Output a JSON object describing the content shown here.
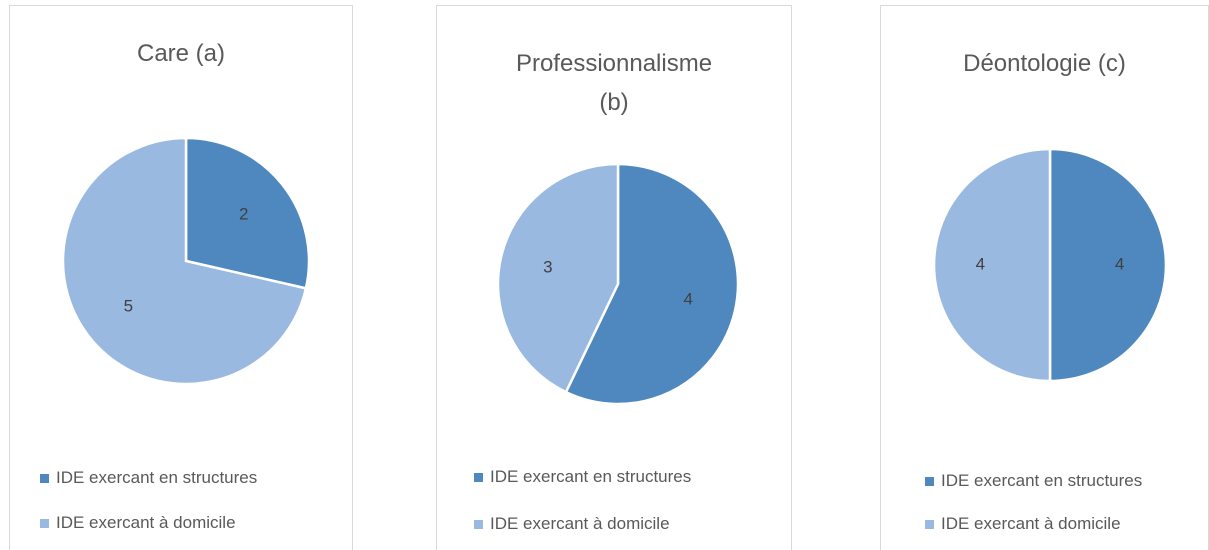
{
  "chart_data": [
    {
      "type": "pie",
      "title": "Care (a)",
      "categories": [
        "IDE exercant en structures",
        "IDE exercant à domicile"
      ],
      "values": [
        2,
        5
      ],
      "colors": [
        "#4f88bf",
        "#99b9e0"
      ]
    },
    {
      "type": "pie",
      "title": "Professionnalisme (b)",
      "categories": [
        "IDE exercant en structures",
        "IDE exercant à domicile"
      ],
      "values": [
        4,
        3
      ],
      "colors": [
        "#4f88bf",
        "#99b9e0"
      ]
    },
    {
      "type": "pie",
      "title": "Déontologie (c)",
      "categories": [
        "IDE exercant en structures",
        "IDE exercant à domicile"
      ],
      "values": [
        4,
        4
      ],
      "colors": [
        "#4f88bf",
        "#99b9e0"
      ]
    }
  ]
}
